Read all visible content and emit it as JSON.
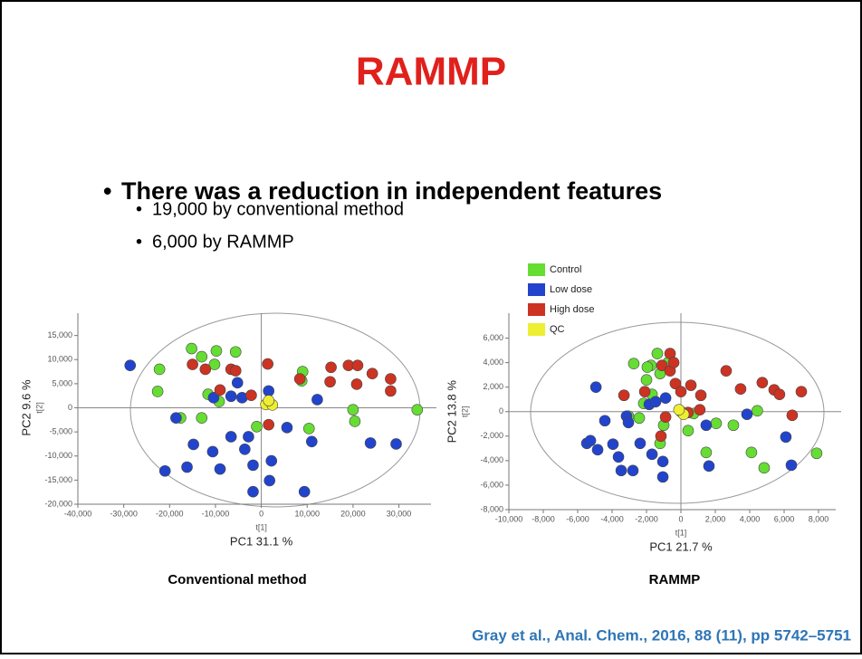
{
  "slide": {
    "title": "RAMMP",
    "bullet": "There was a reduction in independent features",
    "sub_bullets": [
      "19,000 by conventional method",
      "6,000 by RAMMP"
    ],
    "citation": "Gray et al., Anal. Chem., 2016, 88 (11), pp 5742–5751"
  },
  "chart_data": [
    {
      "type": "scatter",
      "caption": "Conventional method",
      "legend": false,
      "x_label": "PC1 31.1 %",
      "x_sublabel": "t[1]",
      "y_label": "PC2 9.6 %",
      "y_sublabel": "t[2]",
      "xlim": [
        -40000,
        37000
      ],
      "ylim": [
        -20000,
        17000
      ],
      "xticks": [
        {
          "value": -40000,
          "label": "-40,000"
        },
        {
          "value": -30000,
          "label": "-30,000"
        },
        {
          "value": -20000,
          "label": "-20,000"
        },
        {
          "value": -10000,
          "label": "-10,000"
        },
        0,
        {
          "value": 10000,
          "label": "10,000"
        },
        {
          "value": 20000,
          "label": "20,000"
        },
        {
          "value": 30000,
          "label": "30,000"
        }
      ],
      "yticks": [
        {
          "value": -20000,
          "label": "-20,000"
        },
        {
          "value": -15000,
          "label": "-15,000"
        },
        {
          "value": -10000,
          "label": "-10,000"
        },
        {
          "value": -5000,
          "label": "-5,000"
        },
        0,
        {
          "value": 5000,
          "label": "5,000"
        },
        {
          "value": 10000,
          "label": "10,000"
        },
        {
          "value": 15000,
          "label": "15,000"
        }
      ],
      "series": [
        {
          "color": "#66dd33",
          "x": [
            -15200,
            -9800,
            -5600,
            -22200,
            -13000,
            -10200,
            -22600,
            -11600,
            -17600,
            -13000,
            -1000,
            9000,
            8800,
            20000,
            10400,
            20400,
            34000,
            -9200
          ],
          "values": [
            12300,
            11800,
            11600,
            8000,
            10600,
            9000,
            3400,
            2800,
            -2100,
            -2100,
            -3900,
            7500,
            5600,
            -400,
            -4300,
            -2800,
            -400,
            1300
          ]
        },
        {
          "color": "#2244cc",
          "x": [
            -28600,
            -18600,
            -14800,
            -21000,
            -16200,
            -10600,
            -9000,
            -6600,
            -3600,
            -2800,
            -1800,
            2200,
            1800,
            -1800,
            9400,
            5600,
            11000,
            12200,
            23800,
            29400,
            -6600,
            -4200,
            -5200,
            1600,
            -10400
          ],
          "values": [
            8800,
            -2100,
            -7600,
            -13100,
            -12300,
            -9100,
            -12700,
            -6000,
            -8600,
            -6000,
            -11900,
            -11000,
            -15100,
            -17400,
            -17400,
            -4100,
            -7000,
            1700,
            -7300,
            -7500,
            2400,
            2100,
            5200,
            3500,
            2100
          ]
        },
        {
          "color": "#cc3322",
          "x": [
            -15000,
            -12200,
            -6600,
            -5600,
            1400,
            -9000,
            -2200,
            1600,
            8400,
            15200,
            19000,
            21000,
            20800,
            24200,
            28200,
            28200,
            15000
          ],
          "values": [
            9000,
            8000,
            8000,
            7700,
            9100,
            3700,
            2600,
            -3500,
            6000,
            8400,
            8800,
            8800,
            4900,
            7100,
            6000,
            3500,
            5400
          ]
        },
        {
          "color": "#eeee33",
          "x": [
            1800,
            1000,
            2400,
            1600
          ],
          "values": [
            1100,
            700,
            600,
            1500
          ]
        }
      ]
    },
    {
      "type": "scatter",
      "caption": "RAMMP",
      "legend": true,
      "x_label": "PC1 21.7 %",
      "x_sublabel": "t[1]",
      "y_label": "PC2 13.8 %",
      "y_sublabel": "t[2]",
      "xlim": [
        -10000,
        9000
      ],
      "ylim": [
        -8000,
        7000
      ],
      "xticks": [
        {
          "value": -10000,
          "label": "-10,000"
        },
        {
          "value": -8000,
          "label": "-8,000"
        },
        {
          "value": -6000,
          "label": "-6,000"
        },
        {
          "value": -4000,
          "label": "-4,000"
        },
        {
          "value": -2000,
          "label": "-2,000"
        },
        0,
        {
          "value": 2000,
          "label": "2,000"
        },
        {
          "value": 4000,
          "label": "4,000"
        },
        {
          "value": 6000,
          "label": "6,000"
        },
        {
          "value": 8000,
          "label": "8,000"
        }
      ],
      "yticks": [
        {
          "value": -8000,
          "label": "-8,000"
        },
        {
          "value": -6000,
          "label": "-6,000"
        },
        {
          "value": -4000,
          "label": "-4,000"
        },
        {
          "value": -2000,
          "label": "-2,000"
        },
        0,
        {
          "value": 2000,
          "label": "2,000"
        },
        {
          "value": 4000,
          "label": "4,000"
        },
        {
          "value": 6000,
          "label": "6,000"
        }
      ],
      "series": [
        {
          "name": "Control",
          "color": "#66dd33",
          "x": [
            -1370,
            -2740,
            -1740,
            -740,
            -1210,
            -2000,
            -1680,
            -2160,
            -3050,
            -2420,
            -1000,
            -1210,
            740,
            420,
            2050,
            3050,
            1470,
            4100,
            4840,
            4440,
            7890,
            -1950
          ],
          "values": [
            4740,
            3920,
            3770,
            4000,
            3110,
            2590,
            1410,
            670,
            -370,
            -520,
            -1110,
            -2590,
            -150,
            -1550,
            -960,
            -1110,
            -3330,
            -3330,
            -4590,
            70,
            -3400,
            3630
          ]
        },
        {
          "name": "Low dose",
          "color": "#2244cc",
          "x": [
            -4940,
            -4420,
            -3160,
            -3050,
            -5470,
            -4840,
            -3950,
            -3630,
            -3470,
            -2790,
            -2370,
            -1680,
            -1050,
            -1050,
            -1840,
            -1470,
            1470,
            1630,
            3840,
            6100,
            6420,
            -5260,
            -890
          ],
          "values": [
            2000,
            -740,
            -370,
            -890,
            -2590,
            -3110,
            -2660,
            -3700,
            -4810,
            -4810,
            -2590,
            -3480,
            -5330,
            -4070,
            590,
            810,
            -1110,
            -4440,
            -220,
            -2070,
            -4370,
            -2370,
            1110
          ]
        },
        {
          "name": "High dose",
          "color": "#cc3322",
          "x": [
            -1100,
            -630,
            -630,
            -420,
            -3310,
            -2100,
            -320,
            0,
            580,
            420,
            1100,
            2630,
            1160,
            3470,
            4730,
            5420,
            5730,
            7000,
            6470,
            -1160,
            -890
          ],
          "values": [
            3770,
            4740,
            3330,
            4000,
            1330,
            1630,
            2290,
            1630,
            2150,
            -70,
            150,
            3330,
            1330,
            1850,
            2370,
            1780,
            1410,
            1630,
            -300,
            -2000,
            -440
          ]
        },
        {
          "name": "QC",
          "color": "#eeee33",
          "x": [
            0,
            160,
            -110
          ],
          "values": [
            0,
            -220,
            150
          ]
        }
      ]
    }
  ]
}
